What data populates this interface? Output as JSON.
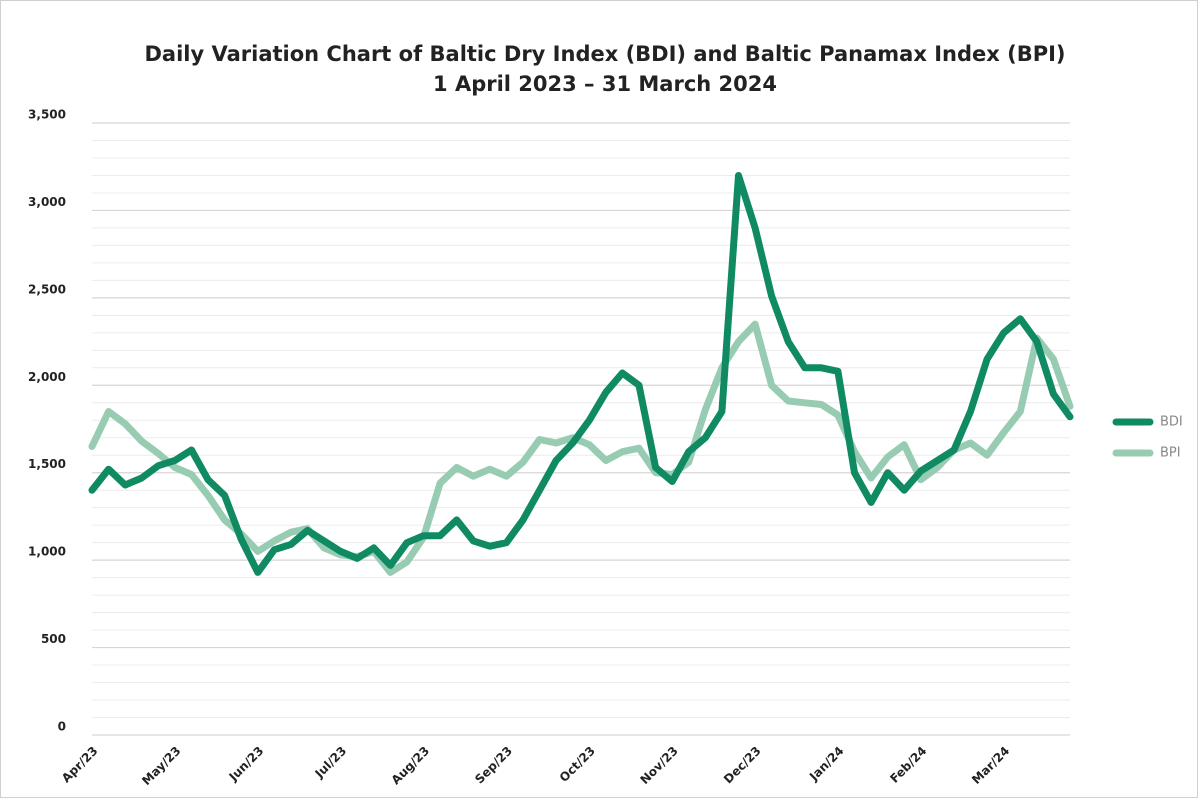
{
  "chart_data": {
    "type": "line",
    "title": "Daily Variation Chart of Baltic Dry Index (BDI) and Baltic Panamax Index (BPI)",
    "subtitle": "1 April 2023 – 31 March 2024",
    "categories": [
      "Apr/23",
      null,
      null,
      null,
      null,
      "May/23",
      null,
      null,
      null,
      null,
      "Jun/23",
      null,
      null,
      null,
      null,
      "Jul/23",
      null,
      null,
      null,
      null,
      "Aug/23",
      null,
      null,
      null,
      null,
      "Sep/23",
      null,
      null,
      null,
      null,
      "Oct/23",
      null,
      null,
      null,
      null,
      "Nov/23",
      null,
      null,
      null,
      null,
      "Dec/23",
      null,
      null,
      null,
      null,
      "Jan/24",
      null,
      null,
      null,
      null,
      "Feb/24",
      null,
      null,
      null,
      null,
      "Mar/24",
      null,
      null,
      null,
      null
    ],
    "series": [
      {
        "name": "BDI",
        "color": "#0f8a63",
        "values": [
          1400,
          1520,
          1430,
          1470,
          1540,
          1570,
          1630,
          1460,
          1370,
          1120,
          930,
          1060,
          1090,
          1170,
          1110,
          1050,
          1010,
          1070,
          970,
          1100,
          1140,
          1140,
          1230,
          1110,
          1080,
          1100,
          1230,
          1400,
          1570,
          1670,
          1800,
          1960,
          2070,
          2000,
          1530,
          1450,
          1620,
          1700,
          1850,
          3200,
          2900,
          2510,
          2250,
          2100,
          2100,
          2080,
          1500,
          1330,
          1500,
          1400,
          1510,
          1570,
          1630,
          1850,
          2150,
          2300,
          2380,
          2250,
          1950,
          1820
        ]
      },
      {
        "name": "BPI",
        "color": "#97ccb3",
        "values": [
          1650,
          1850,
          1780,
          1680,
          1610,
          1530,
          1490,
          1370,
          1230,
          1150,
          1050,
          1110,
          1160,
          1180,
          1070,
          1030,
          1020,
          1050,
          930,
          990,
          1130,
          1440,
          1530,
          1480,
          1520,
          1480,
          1560,
          1690,
          1670,
          1700,
          1660,
          1570,
          1620,
          1640,
          1500,
          1490,
          1560,
          1860,
          2100,
          2250,
          2350,
          2000,
          1910,
          1900,
          1890,
          1830,
          1620,
          1470,
          1590,
          1660,
          1460,
          1530,
          1630,
          1670,
          1600,
          1730,
          1850,
          2270,
          2150,
          1880
        ]
      }
    ],
    "ylim": [
      0,
      3500
    ],
    "yticks": [
      0,
      500,
      {
        "value": 1000,
        "label": "1,000"
      },
      {
        "value": 1500,
        "label": "1,500"
      },
      {
        "value": 2000,
        "label": "2,000"
      },
      {
        "value": 2500,
        "label": "2,500"
      },
      {
        "value": 3000,
        "label": "3,000"
      },
      {
        "value": 3500,
        "label": "3,500"
      }
    ],
    "y_minor_ticks": [
      100,
      200,
      300,
      400,
      600,
      700,
      800,
      900,
      1100,
      1200,
      1300,
      1400,
      1600,
      1700,
      1800,
      1900,
      2100,
      2200,
      2300,
      2400,
      2600,
      2700,
      2800,
      2900,
      3100,
      3200,
      3300,
      3400
    ],
    "grid": true,
    "legend": "right"
  }
}
